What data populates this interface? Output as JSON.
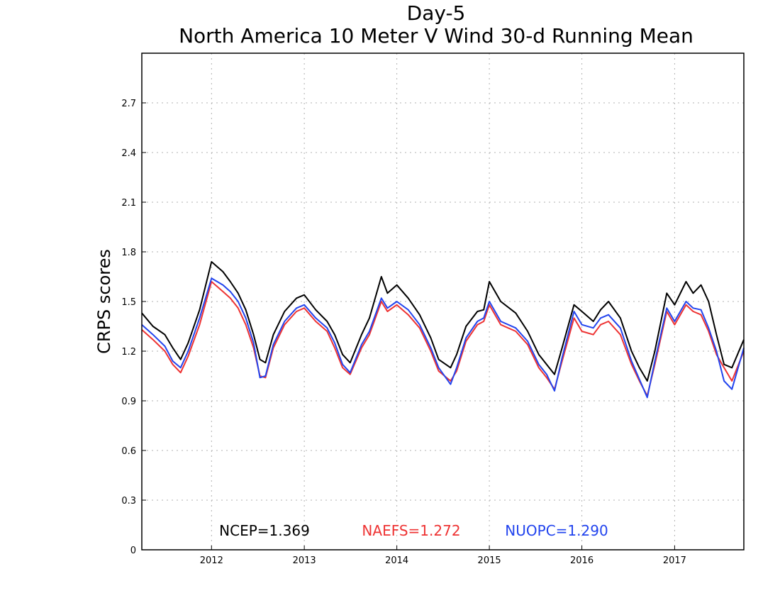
{
  "chart_data": {
    "type": "line",
    "title": "Day-5",
    "subtitle": "North America 10 Meter V Wind 30-d Running Mean",
    "xlabel": "",
    "ylabel": "CRPS scores",
    "ylim": [
      0,
      3.0
    ],
    "xlim": [
      "2011-04-01",
      "2017-10-01"
    ],
    "grid": true,
    "y_ticks": [
      "0",
      "0.3",
      "0.6",
      "0.9",
      "1.2",
      "1.5",
      "1.8",
      "2.1",
      "2.4",
      "2.7"
    ],
    "x_ticks": [
      "2012",
      "2013",
      "2014",
      "2015",
      "2016",
      "2017"
    ],
    "legend_position": "bottom-inside",
    "x": [
      "2011-04-01",
      "2011-05-15",
      "2011-07-01",
      "2011-08-01",
      "2011-09-01",
      "2011-10-01",
      "2011-11-15",
      "2012-01-01",
      "2012-02-15",
      "2012-03-15",
      "2012-04-15",
      "2012-05-15",
      "2012-06-15",
      "2012-07-10",
      "2012-08-01",
      "2012-09-01",
      "2012-10-15",
      "2012-12-01",
      "2013-01-01",
      "2013-02-15",
      "2013-04-01",
      "2013-05-01",
      "2013-06-01",
      "2013-07-01",
      "2013-08-15",
      "2013-09-15",
      "2013-11-01",
      "2013-11-25",
      "2014-01-01",
      "2014-02-15",
      "2014-04-01",
      "2014-05-15",
      "2014-06-15",
      "2014-08-01",
      "2014-08-25",
      "2014-10-01",
      "2014-11-15",
      "2014-12-10",
      "2015-01-01",
      "2015-02-15",
      "2015-04-15",
      "2015-06-01",
      "2015-07-15",
      "2015-08-15",
      "2015-09-15",
      "2015-10-15",
      "2015-12-01",
      "2016-01-01",
      "2016-02-15",
      "2016-03-15",
      "2016-04-15",
      "2016-06-01",
      "2016-07-15",
      "2016-08-15",
      "2016-09-15",
      "2016-10-15",
      "2016-12-01",
      "2017-01-01",
      "2017-02-15",
      "2017-03-15",
      "2017-04-15",
      "2017-05-15",
      "2017-06-15",
      "2017-07-15",
      "2017-08-15",
      "2017-10-01"
    ],
    "series": [
      {
        "name": "NCEP",
        "color": "#000000",
        "values": [
          1.43,
          1.35,
          1.3,
          1.22,
          1.15,
          1.25,
          1.45,
          1.74,
          1.68,
          1.62,
          1.55,
          1.45,
          1.3,
          1.15,
          1.13,
          1.3,
          1.44,
          1.52,
          1.54,
          1.45,
          1.38,
          1.3,
          1.18,
          1.13,
          1.3,
          1.4,
          1.65,
          1.55,
          1.6,
          1.52,
          1.42,
          1.28,
          1.15,
          1.1,
          1.18,
          1.35,
          1.44,
          1.45,
          1.62,
          1.5,
          1.43,
          1.32,
          1.18,
          1.12,
          1.06,
          1.22,
          1.48,
          1.44,
          1.38,
          1.45,
          1.5,
          1.4,
          1.2,
          1.1,
          1.02,
          1.2,
          1.55,
          1.48,
          1.62,
          1.55,
          1.6,
          1.5,
          1.3,
          1.12,
          1.1,
          1.27
        ]
      },
      {
        "name": "NAEFS",
        "color": "#ee3333",
        "values": [
          1.33,
          1.27,
          1.2,
          1.12,
          1.07,
          1.17,
          1.36,
          1.62,
          1.56,
          1.52,
          1.46,
          1.36,
          1.22,
          1.05,
          1.04,
          1.22,
          1.36,
          1.44,
          1.46,
          1.38,
          1.32,
          1.22,
          1.1,
          1.06,
          1.22,
          1.3,
          1.5,
          1.44,
          1.48,
          1.42,
          1.34,
          1.2,
          1.08,
          1.02,
          1.08,
          1.26,
          1.36,
          1.38,
          1.48,
          1.36,
          1.32,
          1.24,
          1.1,
          1.04,
          0.97,
          1.14,
          1.4,
          1.32,
          1.3,
          1.36,
          1.38,
          1.3,
          1.12,
          1.02,
          0.93,
          1.12,
          1.44,
          1.36,
          1.48,
          1.44,
          1.42,
          1.32,
          1.18,
          1.1,
          1.02,
          1.2
        ]
      },
      {
        "name": "NUOPC",
        "color": "#2244ee",
        "values": [
          1.36,
          1.3,
          1.23,
          1.14,
          1.1,
          1.2,
          1.4,
          1.64,
          1.6,
          1.56,
          1.5,
          1.4,
          1.25,
          1.04,
          1.05,
          1.24,
          1.38,
          1.46,
          1.48,
          1.4,
          1.34,
          1.25,
          1.12,
          1.07,
          1.24,
          1.32,
          1.52,
          1.46,
          1.5,
          1.45,
          1.36,
          1.22,
          1.1,
          1.0,
          1.1,
          1.28,
          1.38,
          1.4,
          1.5,
          1.38,
          1.34,
          1.26,
          1.12,
          1.06,
          0.96,
          1.16,
          1.44,
          1.36,
          1.34,
          1.4,
          1.42,
          1.34,
          1.14,
          1.03,
          0.92,
          1.14,
          1.46,
          1.38,
          1.5,
          1.46,
          1.45,
          1.34,
          1.2,
          1.02,
          0.97,
          1.22
        ]
      }
    ],
    "legend": [
      {
        "label": "NCEP=1.369",
        "color": "#000000"
      },
      {
        "label": "NAEFS=1.272",
        "color": "#ee3333"
      },
      {
        "label": "NUOPC=1.290",
        "color": "#2244ee"
      }
    ]
  }
}
